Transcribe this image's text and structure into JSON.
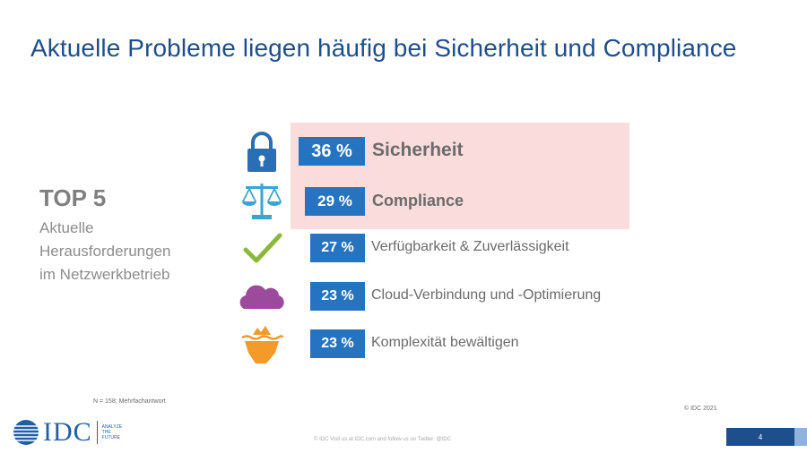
{
  "title": "Aktuelle Probleme liegen häufig bei Sicherheit und Compliance",
  "top5": {
    "heading": "TOP 5",
    "subtitle_lines": [
      "Aktuelle",
      "Herausforderungen",
      "im Netzwerkbetrieb"
    ]
  },
  "items": [
    {
      "percent": "36 %",
      "label": "Sicherheit",
      "icon": "lock-icon",
      "highlighted": true
    },
    {
      "percent": "29 %",
      "label": "Compliance",
      "icon": "scales-icon",
      "highlighted": true
    },
    {
      "percent": "27 %",
      "label": "Verfügbarkeit & Zuverlässigkeit",
      "icon": "checkmark-icon",
      "highlighted": false
    },
    {
      "percent": "23 %",
      "label": "Cloud-Verbindung und -Optimierung",
      "icon": "cloud-icon",
      "highlighted": false
    },
    {
      "percent": "23 %",
      "label": "Komplexität bewältigen",
      "icon": "iceberg-icon",
      "highlighted": false
    }
  ],
  "footnote": "N = 158; Mehrfachantwort",
  "copyright": "© IDC 2021",
  "footer_text": "© IDC  Visit us at IDC.com and follow us on Twitter: @IDC",
  "page_number": "4",
  "logo": {
    "text": "IDC",
    "tagline_lines": [
      "ANALYZE",
      "THE",
      "FUTURE"
    ]
  },
  "colors": {
    "title": "#1f4e8c",
    "badge": "#2673bf",
    "highlight": "#fbdcdc",
    "lock": "#2a6fb5",
    "scales": "#3aa5d0",
    "check": "#8bb83a",
    "cloud": "#9b4a9c",
    "iceberg": "#f39a2b"
  }
}
